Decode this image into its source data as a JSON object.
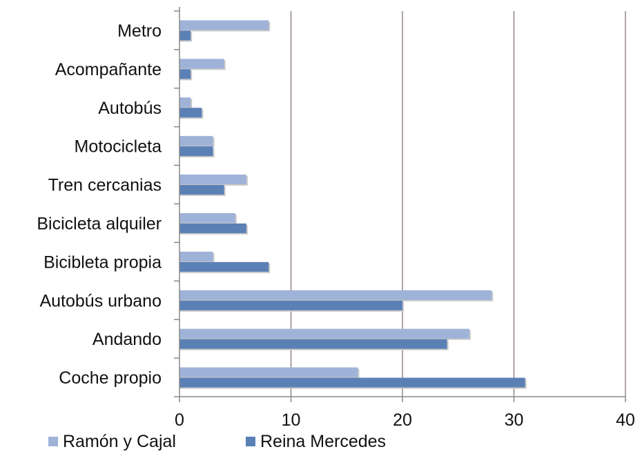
{
  "chart_data": {
    "type": "bar",
    "orientation": "horizontal",
    "categories": [
      "Metro",
      "Acompañante",
      "Autobús",
      "Motocicleta",
      "Tren cercanias",
      "Bicicleta alquiler",
      "Bicibleta propia",
      "Autobús urbano",
      "Andando",
      "Coche propio"
    ],
    "series": [
      {
        "name": "Ramón y Cajal",
        "values": [
          8,
          4,
          1,
          3,
          6,
          5,
          3,
          28,
          26,
          16
        ]
      },
      {
        "name": "Reina Mercedes",
        "values": [
          1,
          1,
          2,
          3,
          4,
          6,
          8,
          20,
          24,
          31
        ]
      }
    ],
    "xlim": [
      0,
      40
    ],
    "xticks": [
      "0",
      "10",
      "20",
      "30",
      "40"
    ],
    "title": "",
    "xlabel": "",
    "ylabel": "",
    "grid": "vertical",
    "legend_position": "bottom-left",
    "colors": {
      "series1": "#9fb2d8",
      "series2": "#5b80b6",
      "grid": "#7d6a66",
      "axis": "#888888"
    }
  }
}
